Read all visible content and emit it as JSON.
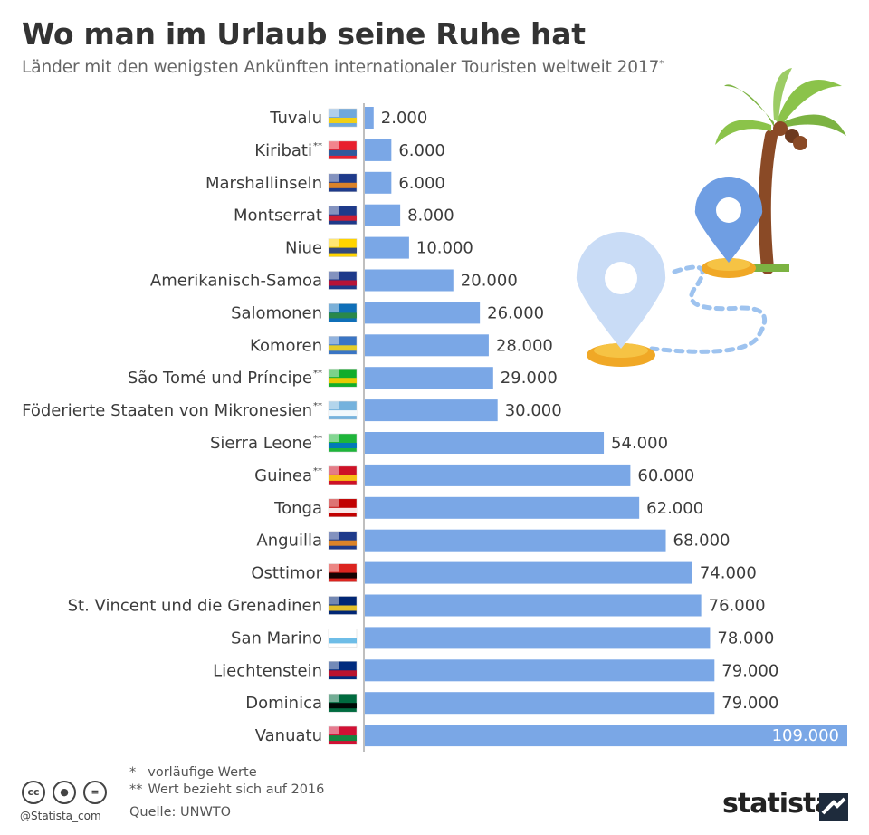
{
  "title": "Wo man im Urlaub seine Ruhe hat",
  "subtitle": "Länder mit den wenigsten Ankünften internationaler Touristen weltweit 2017",
  "subtitle_mark": "*",
  "colors": {
    "bar": "#7aa7e6",
    "axis": "#bfbfbf",
    "text": "#3c3c3c"
  },
  "chart_data": {
    "type": "bar",
    "orientation": "horizontal",
    "categories": [
      "Tuvalu",
      "Kiribati",
      "Marshallinseln",
      "Montserrat",
      "Niue",
      "Amerikanisch-Samoa",
      "Salomonen",
      "Komoren",
      "São Tomé und Príncipe",
      "Föderierte Staaten von Mikronesien",
      "Sierra Leone",
      "Guinea",
      "Tonga",
      "Anguilla",
      "Osttimor",
      "St. Vincent und die Grenadinen",
      "San Marino",
      "Liechtenstein",
      "Dominica",
      "Vanuatu"
    ],
    "notes": [
      "",
      "**",
      "",
      "",
      "",
      "",
      "",
      "",
      "**",
      "**",
      "**",
      "**",
      "",
      "",
      "",
      "",
      "",
      "",
      "",
      ""
    ],
    "values": [
      2000,
      6000,
      6000,
      8000,
      10000,
      20000,
      26000,
      28000,
      29000,
      30000,
      54000,
      60000,
      62000,
      68000,
      74000,
      76000,
      78000,
      79000,
      79000,
      109000
    ],
    "value_labels": [
      "2.000",
      "6.000",
      "6.000",
      "8.000",
      "10.000",
      "20.000",
      "26.000",
      "28.000",
      "29.000",
      "30.000",
      "54.000",
      "60.000",
      "62.000",
      "68.000",
      "74.000",
      "76.000",
      "78.000",
      "79.000",
      "79.000",
      "109.000"
    ],
    "flags": [
      "tuvalu-flag-icon",
      "kiribati-flag-icon",
      "marshall-islands-flag-icon",
      "montserrat-flag-icon",
      "niue-flag-icon",
      "american-samoa-flag-icon",
      "solomon-islands-flag-icon",
      "comoros-flag-icon",
      "sao-tome-flag-icon",
      "micronesia-flag-icon",
      "sierra-leone-flag-icon",
      "guinea-flag-icon",
      "tonga-flag-icon",
      "anguilla-flag-icon",
      "east-timor-flag-icon",
      "st-vincent-flag-icon",
      "san-marino-flag-icon",
      "liechtenstein-flag-icon",
      "dominica-flag-icon",
      "vanuatu-flag-icon"
    ],
    "xlim": [
      0,
      109000
    ],
    "grid": false,
    "legend": "none"
  },
  "footnotes": {
    "f1_mark": "*",
    "f1_text": "vorläufige Werte",
    "f2_mark": "**",
    "f2_text": "Wert bezieht sich auf 2016",
    "source": "Quelle: UNWTO"
  },
  "license": {
    "handle": "@Statista_com",
    "icons": [
      "cc-icon",
      "by-person-icon",
      "nd-equals-icon"
    ]
  },
  "brand": "statista",
  "illustration": [
    "palm-tree-icon",
    "map-pin-icon",
    "map-pin-icon",
    "dotted-route-icon"
  ]
}
